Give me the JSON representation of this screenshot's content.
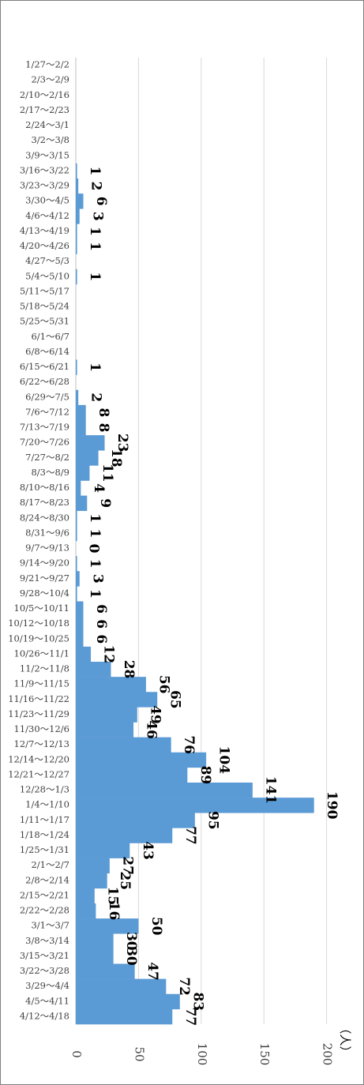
{
  "chart_data": {
    "type": "bar",
    "orientation": "horizontal",
    "unit_label": "（人）",
    "xlim": [
      0,
      200
    ],
    "x_ticks": [
      "0",
      "50",
      "100",
      "150",
      "200"
    ],
    "grid": true,
    "bar_color": "#5b9bd5",
    "categories": [
      "1/27～2/2",
      "2/3～2/9",
      "2/10～2/16",
      "2/17～2/23",
      "2/24～3/1",
      "3/2～3/8",
      "3/9～3/15",
      "3/16～3/22",
      "3/23～3/29",
      "3/30～4/5",
      "4/6～4/12",
      "4/13～4/19",
      "4/20～4/26",
      "4/27～5/3",
      "5/4～5/10",
      "5/11～5/17",
      "5/18～5/24",
      "5/25～5/31",
      "6/1～6/7",
      "6/8～6/14",
      "6/15～6/21",
      "6/22～6/28",
      "6/29～7/5",
      "7/6～7/12",
      "7/13～7/19",
      "7/20～7/26",
      "7/27～8/2",
      "8/3～8/9",
      "8/10～8/16",
      "8/17～8/23",
      "8/24～8/30",
      "8/31～9/6",
      "9/7～9/13",
      "9/14～9/20",
      "9/21～9/27",
      "9/28～10/4",
      "10/5～10/11",
      "10/12～10/18",
      "10/19～10/25",
      "10/26～11/1",
      "11/2～11/8",
      "11/9～11/15",
      "11/16～11/22",
      "11/23～11/29",
      "11/30～12/6",
      "12/7～12/13",
      "12/14～12/20",
      "12/21～12/27",
      "12/28～1/3",
      "1/4～1/10",
      "1/11～1/17",
      "1/18～1/24",
      "1/25～1/31",
      "2/1～2/7",
      "2/8～2/14",
      "2/15～2/21",
      "2/22～2/28",
      "3/1～3/7",
      "3/8～3/14",
      "3/15～3/21",
      "3/22～3/28",
      "3/29～4/4",
      "4/5～4/11",
      "4/12～4/18"
    ],
    "values": [
      0,
      0,
      0,
      0,
      0,
      0,
      0,
      1,
      2,
      6,
      3,
      1,
      1,
      0,
      1,
      0,
      0,
      0,
      0,
      0,
      1,
      0,
      2,
      8,
      8,
      23,
      18,
      11,
      4,
      9,
      1,
      1,
      0,
      1,
      3,
      1,
      6,
      6,
      6,
      12,
      28,
      56,
      65,
      49,
      46,
      76,
      104,
      89,
      141,
      190,
      95,
      77,
      43,
      27,
      25,
      15,
      16,
      50,
      30,
      30,
      47,
      72,
      83,
      77
    ],
    "data_labels": [
      "",
      "",
      "",
      "",
      "",
      "",
      "",
      "1",
      "2",
      "6",
      "3",
      "1",
      "1",
      "",
      "1",
      "",
      "",
      "",
      "",
      "",
      "1",
      "",
      "2",
      "8",
      "8",
      "23",
      "18",
      "11",
      "4",
      "9",
      "1",
      "1",
      "0",
      "1",
      "3",
      "1",
      "6",
      "6",
      "6",
      "12",
      "28",
      "56",
      "65",
      "49",
      "46",
      "76",
      "104",
      "89",
      "141",
      "190",
      "95",
      "77",
      "43",
      "27",
      "25",
      "15",
      "16",
      "50",
      "30",
      "30",
      "47",
      "72",
      "83",
      "77"
    ]
  }
}
